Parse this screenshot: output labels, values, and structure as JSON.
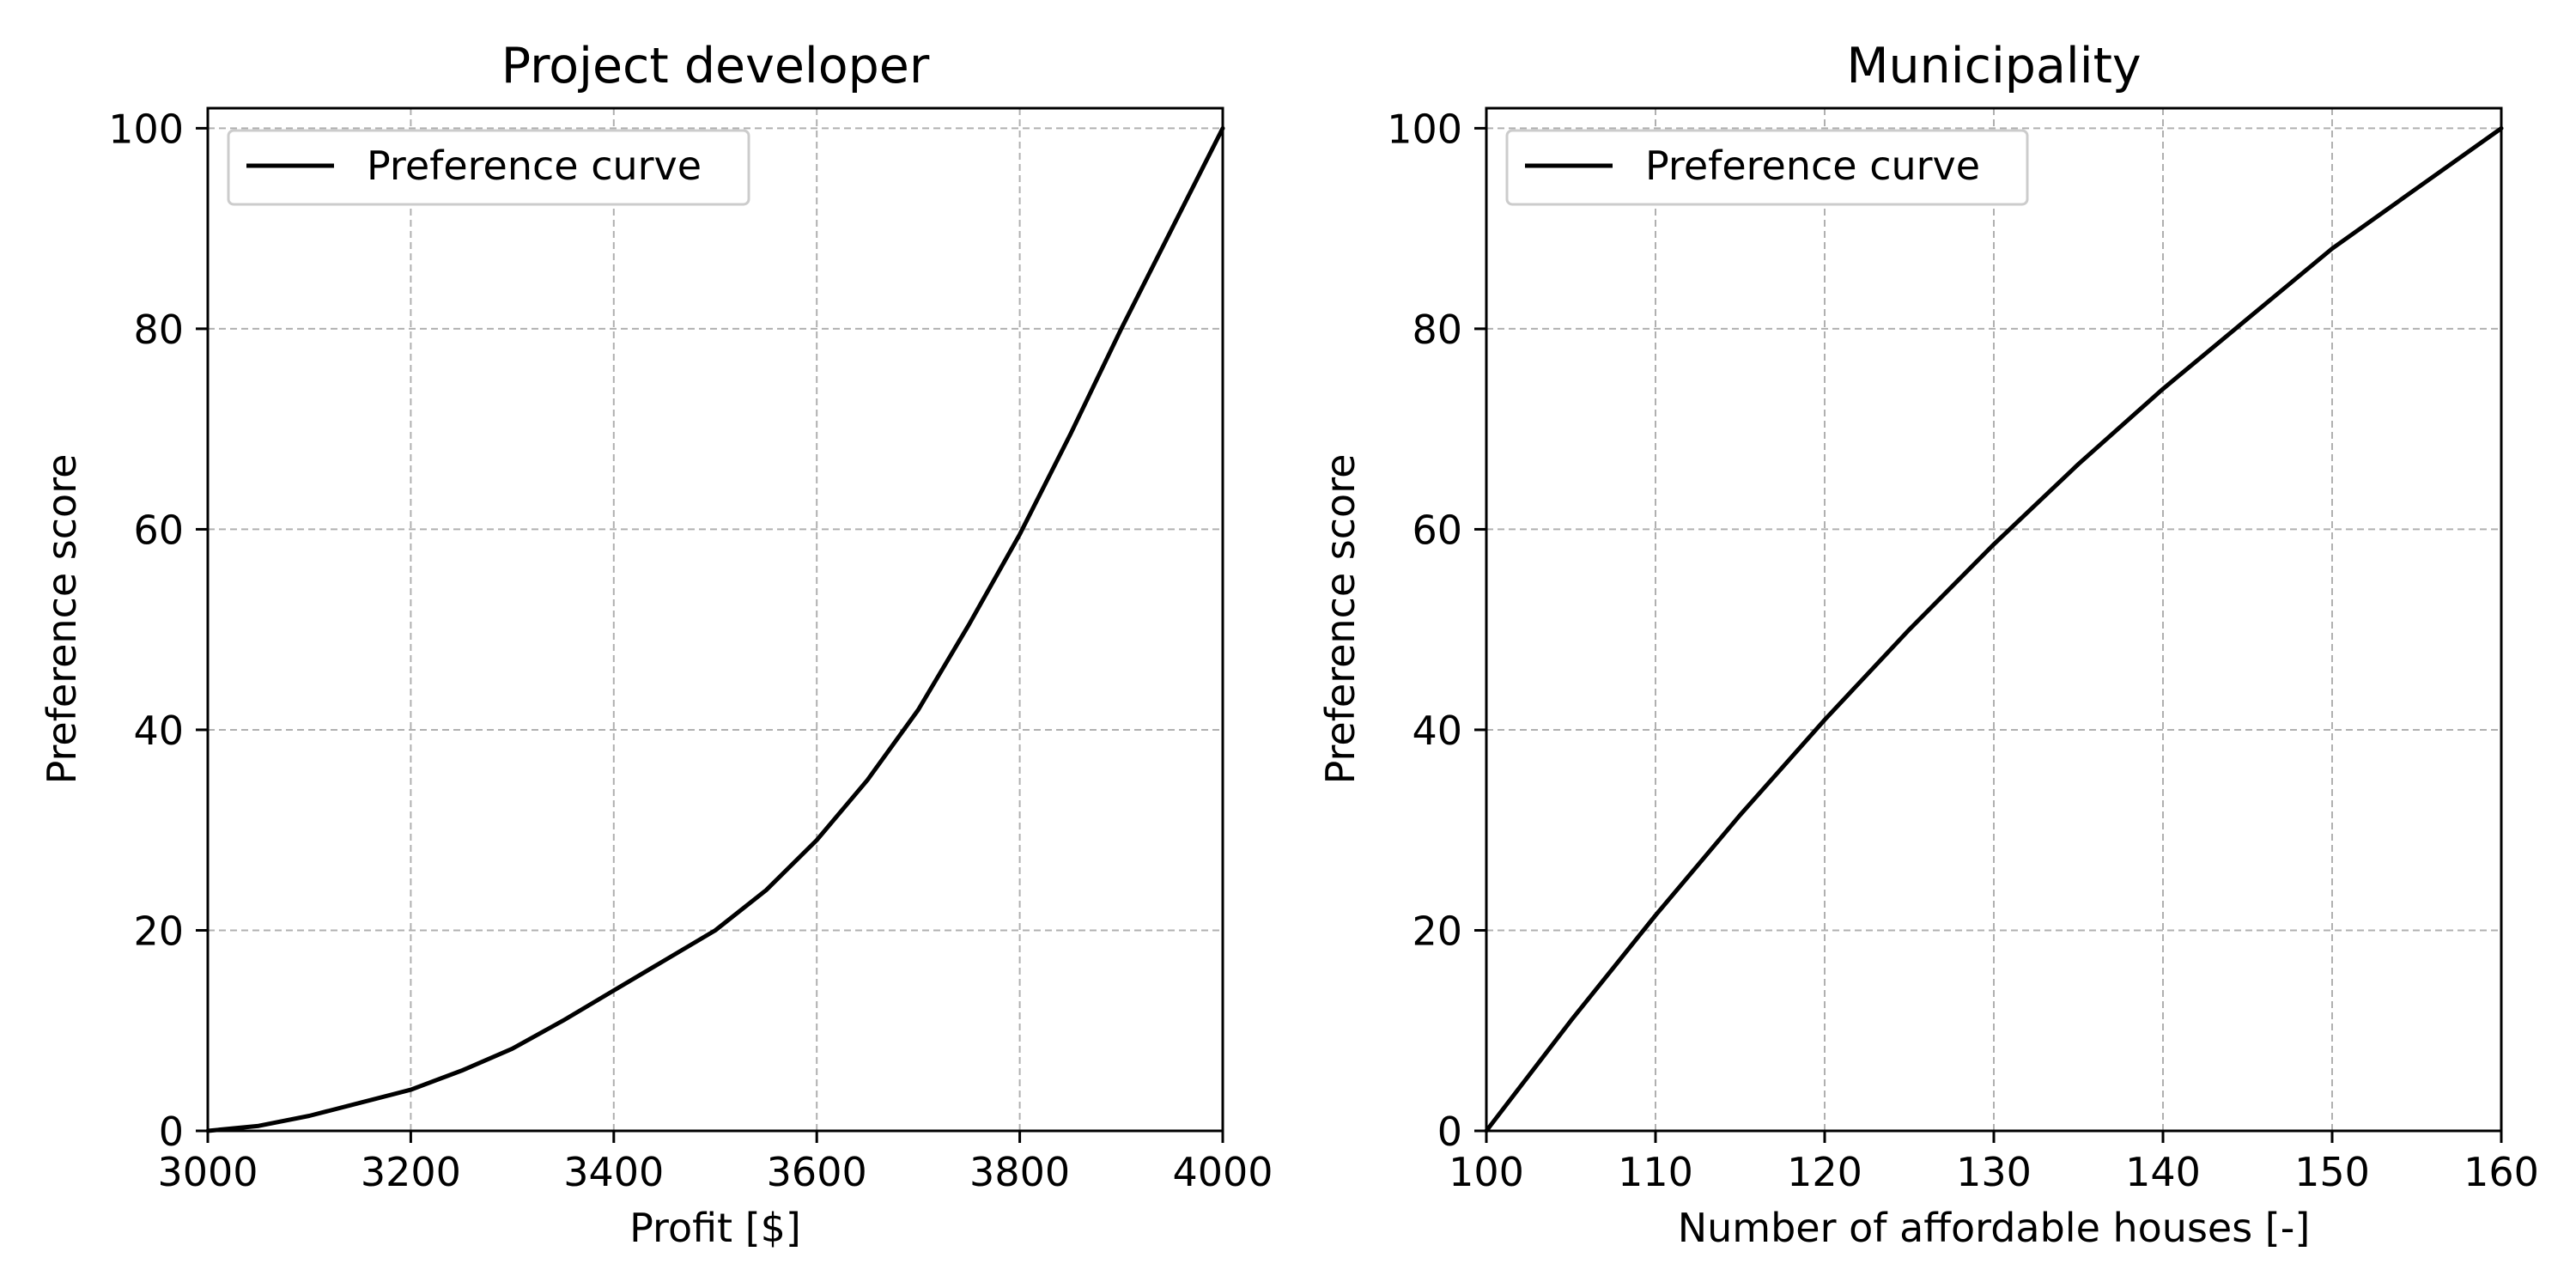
{
  "chart_data": [
    {
      "type": "line",
      "title": "Project developer",
      "xlabel": "Profit [$]",
      "ylabel": "Preference score",
      "xlim": [
        3000,
        4000
      ],
      "ylim": [
        0,
        102
      ],
      "xticks": [
        3000,
        3200,
        3400,
        3600,
        3800,
        4000
      ],
      "xtick_labels": [
        "3000",
        "3200",
        "3400",
        "3600",
        "3800",
        "4000"
      ],
      "yticks": [
        0,
        20,
        40,
        60,
        80,
        100
      ],
      "ytick_labels": [
        "0",
        "20",
        "40",
        "60",
        "80",
        "100"
      ],
      "grid": true,
      "legend_position": "top-left",
      "series": [
        {
          "name": "Preference curve",
          "color": "#000000",
          "x": [
            3000,
            3050,
            3100,
            3150,
            3200,
            3250,
            3300,
            3350,
            3400,
            3450,
            3500,
            3550,
            3600,
            3650,
            3700,
            3750,
            3800,
            3850,
            3900,
            3950,
            4000
          ],
          "y": [
            0,
            0.5,
            1.5,
            2.8,
            4.1,
            6.0,
            8.2,
            11.0,
            14.0,
            17.0,
            20.0,
            24.0,
            29.0,
            35.0,
            42.0,
            50.5,
            59.5,
            69.5,
            80.0,
            90.0,
            100
          ]
        }
      ]
    },
    {
      "type": "line",
      "title": "Municipality",
      "xlabel": "Number of affordable houses [-]",
      "ylabel": "Preference score",
      "xlim": [
        100,
        160
      ],
      "ylim": [
        0,
        102
      ],
      "xticks": [
        100,
        110,
        120,
        130,
        140,
        150,
        160
      ],
      "xtick_labels": [
        "100",
        "110",
        "120",
        "130",
        "140",
        "150",
        "160"
      ],
      "yticks": [
        0,
        20,
        40,
        60,
        80,
        100
      ],
      "ytick_labels": [
        "0",
        "20",
        "40",
        "60",
        "80",
        "100"
      ],
      "grid": true,
      "legend_position": "top-left",
      "series": [
        {
          "name": "Preference curve",
          "color": "#000000",
          "x": [
            100,
            105,
            110,
            115,
            120,
            125,
            130,
            135,
            140,
            145,
            150,
            155,
            160
          ],
          "y": [
            0,
            11.0,
            21.5,
            31.5,
            41.0,
            50.0,
            58.5,
            66.5,
            74.0,
            81.0,
            88.0,
            94.0,
            100
          ]
        }
      ]
    }
  ],
  "colors": {
    "line": "#000000",
    "grid": "#b0b0b0",
    "axes": "#000000",
    "background": "#ffffff",
    "legend_border": "#cccccc"
  }
}
